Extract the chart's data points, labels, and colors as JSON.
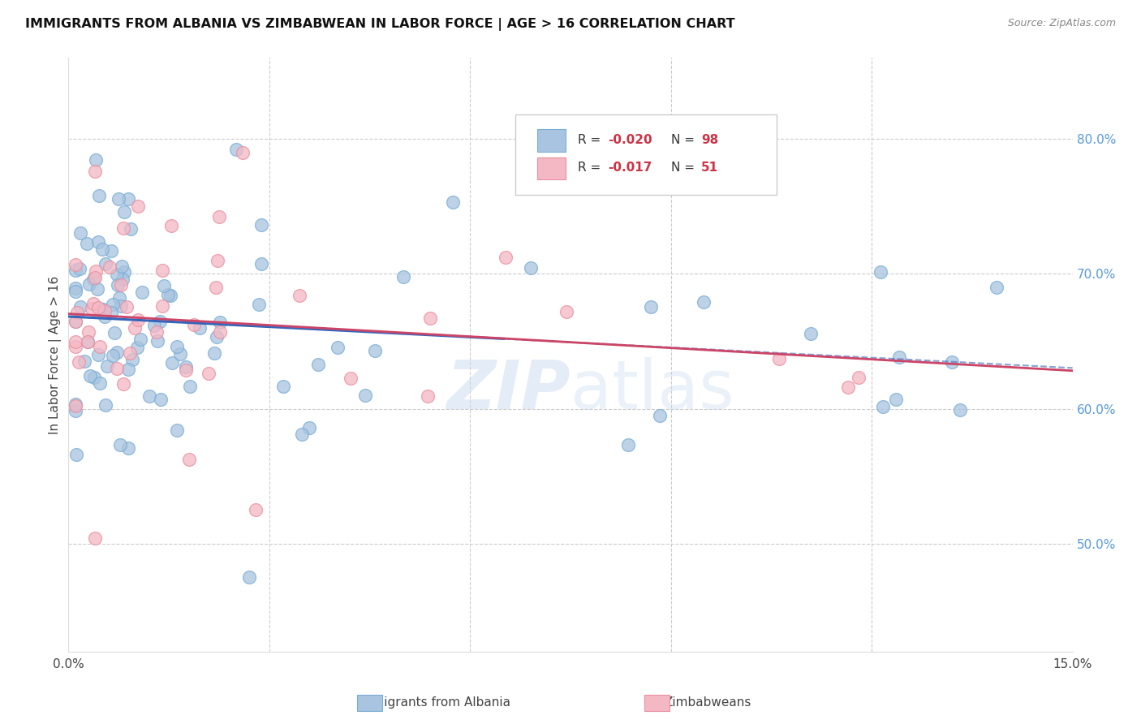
{
  "title": "IMMIGRANTS FROM ALBANIA VS ZIMBABWEAN IN LABOR FORCE | AGE > 16 CORRELATION CHART",
  "source": "Source: ZipAtlas.com",
  "ylabel": "In Labor Force | Age > 16",
  "albania_color": "#a8c4e0",
  "zimbabwe_color": "#f4b8c4",
  "albania_edge_color": "#7aadd4",
  "zimbabwe_edge_color": "#e890a0",
  "albania_line_color": "#3366bb",
  "zimbabwe_line_color": "#cc4466",
  "albania_dash_color": "#aabbdd",
  "background_color": "#ffffff",
  "grid_color": "#cccccc",
  "xlim": [
    0.0,
    0.15
  ],
  "ylim": [
    0.42,
    0.86
  ],
  "right_yticks": [
    0.5,
    0.6,
    0.7,
    0.8
  ],
  "right_yticklabels": [
    "50.0%",
    "60.0%",
    "70.0%",
    "80.0%"
  ],
  "legend_r_albania": "-0.020",
  "legend_n_albania": "98",
  "legend_r_zimbabwe": "-0.017",
  "legend_n_zimbabwe": "51"
}
